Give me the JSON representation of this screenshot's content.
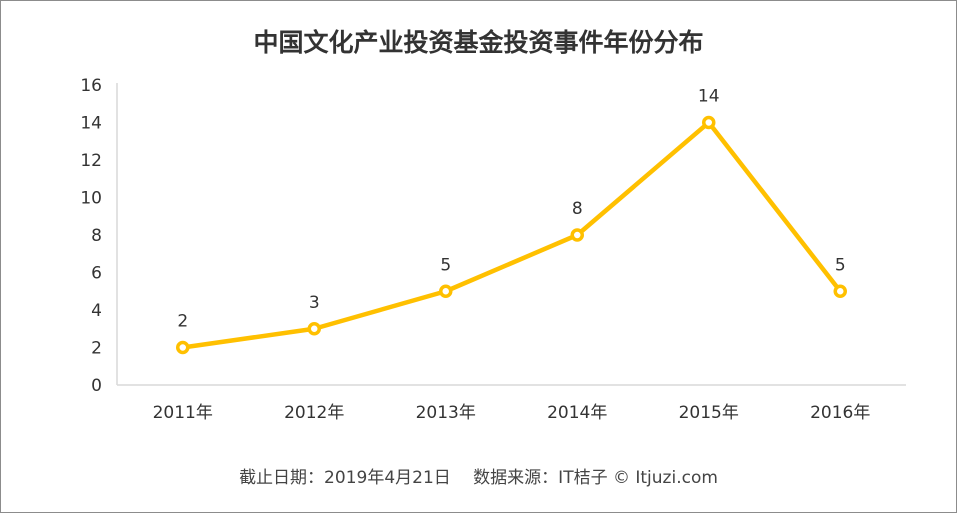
{
  "chart_data": {
    "type": "line",
    "title": "中国文化产业投资基金投资事件年份分布",
    "categories": [
      "2011年",
      "2012年",
      "2013年",
      "2014年",
      "2015年",
      "2016年"
    ],
    "values": [
      2,
      3,
      5,
      8,
      14,
      5
    ],
    "ylim": [
      0,
      16
    ],
    "yticks": [
      0,
      2,
      4,
      6,
      8,
      10,
      12,
      14,
      16
    ],
    "xlabel": "",
    "ylabel": "",
    "grid": false,
    "data_labels": true,
    "line_color": "#FFC000"
  },
  "footer": "截止日期：2019年4月21日　 数据来源：IT桔子 © Itjuzi.com"
}
